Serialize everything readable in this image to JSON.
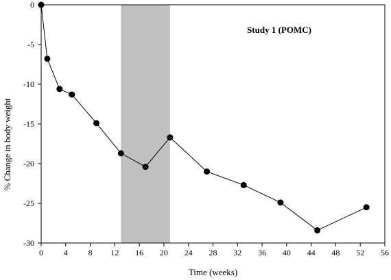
{
  "chart_data": {
    "type": "line",
    "title": "",
    "annotation": "Study 1 (POMC)",
    "xlabel": "Time (weeks)",
    "ylabel": "% Change in body weight",
    "xlim": [
      0,
      56
    ],
    "ylim": [
      -30,
      0
    ],
    "xticks": [
      0,
      4,
      8,
      12,
      16,
      20,
      24,
      28,
      32,
      36,
      40,
      44,
      48,
      52,
      56
    ],
    "yticks": [
      0,
      -5,
      -10,
      -15,
      -20,
      -25,
      -30
    ],
    "shaded_region": {
      "x_start": 13,
      "x_end": 21,
      "color": "#c0c0c0"
    },
    "grid": false,
    "legend": "none",
    "series": [
      {
        "color": "#000000",
        "x": [
          0,
          1,
          3,
          5,
          9,
          13,
          17,
          21,
          27,
          33,
          39,
          45,
          53
        ],
        "y": [
          0,
          -6.8,
          -10.6,
          -11.3,
          -14.9,
          -18.7,
          -20.4,
          -16.7,
          -21.0,
          -22.7,
          -24.9,
          -28.4,
          -25.5
        ]
      }
    ]
  }
}
